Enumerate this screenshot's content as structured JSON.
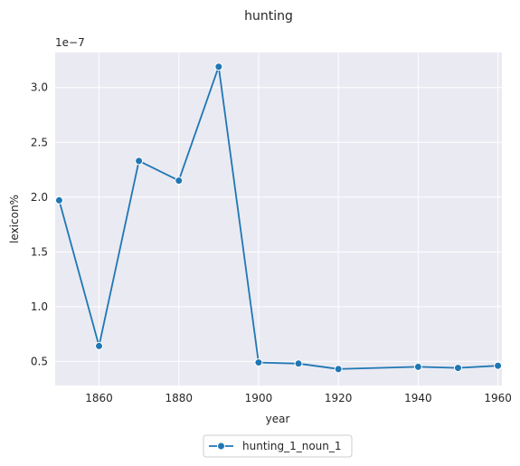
{
  "chart_data": {
    "type": "line",
    "title": "hunting",
    "xlabel": "year",
    "ylabel": "lexicon%",
    "y_offset_label": "1e−7",
    "xlim": [
      1849,
      1961
    ],
    "ylim": [
      0.28,
      3.32
    ],
    "y_scale_exponent": -7,
    "x_ticks": [
      1860,
      1880,
      1900,
      1920,
      1940,
      1960
    ],
    "y_ticks": [
      0.5,
      1.0,
      1.5,
      2.0,
      2.5,
      3.0
    ],
    "y_tick_labels": [
      "0.5",
      "1.0",
      "1.5",
      "2.0",
      "2.5",
      "3.0"
    ],
    "grid": true,
    "legend_position": "bottom-center",
    "series": [
      {
        "name": "hunting_1_noun_1",
        "color": "#1f77b4",
        "marker": "circle",
        "x": [
          1850,
          1860,
          1870,
          1880,
          1890,
          1900,
          1910,
          1920,
          1940,
          1950,
          1960
        ],
        "y": [
          1.97,
          0.64,
          2.33,
          2.15,
          3.19,
          0.49,
          0.48,
          0.43,
          0.45,
          0.44,
          0.46
        ]
      }
    ]
  },
  "colors": {
    "plot_background": "#eaeaf2",
    "grid": "#ffffff",
    "text": "#262626"
  }
}
